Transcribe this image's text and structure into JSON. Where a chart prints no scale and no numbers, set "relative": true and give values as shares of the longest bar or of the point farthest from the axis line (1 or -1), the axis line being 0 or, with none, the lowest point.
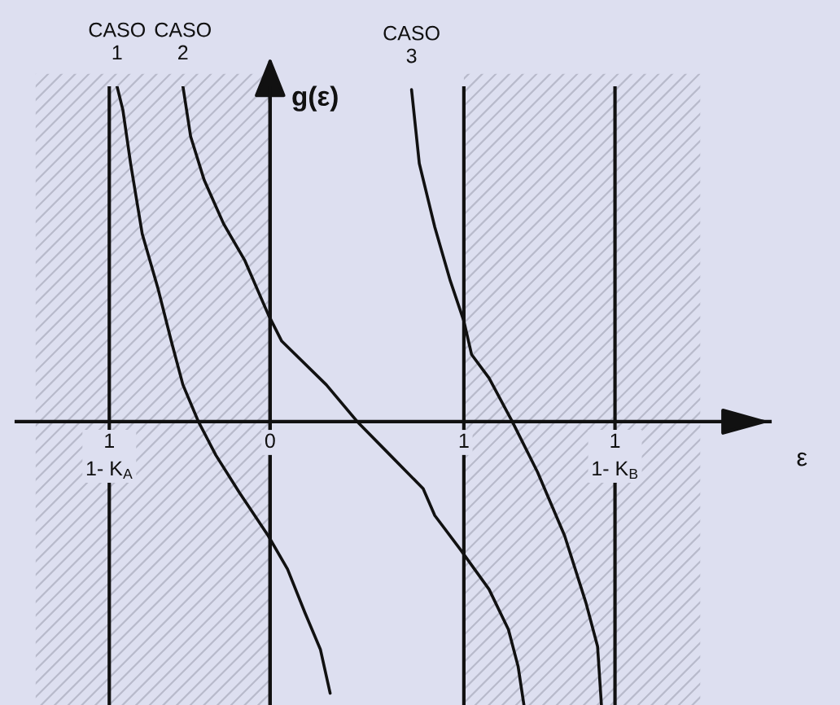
{
  "chart_data": {
    "type": "line",
    "relative": true,
    "xlabel": "ε",
    "ylabel": "g(ε)",
    "xlim": [
      -1.31,
      2.58
    ],
    "xticks": [
      {
        "value": -0.83,
        "label": "1\n1- K$_{A}$"
      },
      0,
      1,
      {
        "value": 1.78,
        "label": "1\n1- K$_{B}$"
      }
    ],
    "tick_labels": "x",
    "grid": "x",
    "series": [
      {
        "name": "CASO 1",
        "color": "#111111",
        "x": [
          -0.79,
          -0.76,
          -0.72,
          -0.66,
          -0.58,
          -0.51,
          -0.45,
          -0.37,
          -0.28,
          -0.16,
          -0.01,
          0.09,
          0.18,
          0.26,
          0.31
        ],
        "values": [
          1.0,
          0.93,
          0.77,
          0.56,
          0.4,
          0.24,
          0.11,
          0.0,
          -0.1,
          -0.21,
          -0.34,
          -0.44,
          -0.57,
          -0.68,
          -0.81
        ]
      },
      {
        "name": "CASO 2",
        "color": "#111111",
        "x": [
          -0.45,
          -0.41,
          -0.34,
          -0.24,
          -0.13,
          -0.01,
          0.06,
          0.29,
          0.45,
          0.62,
          0.79,
          0.85,
          0.98,
          1.13,
          1.23,
          1.28,
          1.31
        ],
        "values": [
          1.0,
          0.85,
          0.72,
          0.59,
          0.48,
          0.32,
          0.24,
          0.11,
          0.0,
          -0.1,
          -0.2,
          -0.28,
          -0.38,
          -0.5,
          -0.62,
          -0.73,
          -0.845
        ]
      },
      {
        "name": "CASO 3",
        "color": "#111111",
        "x": [
          0.73,
          0.77,
          0.85,
          0.93,
          1.0,
          1.04,
          1.13,
          1.25,
          1.38,
          1.52,
          1.63,
          1.69,
          1.71
        ],
        "values": [
          0.99,
          0.77,
          0.58,
          0.42,
          0.3,
          0.2,
          0.13,
          0.0,
          -0.15,
          -0.34,
          -0.54,
          -0.67,
          -0.845
        ]
      }
    ],
    "bands": [
      {
        "axis": "x",
        "from": -1.21,
        "to": 0,
        "color": "#b8bacb"
      },
      {
        "axis": "x",
        "from": 1,
        "to": 2.22,
        "color": "#b8bacb"
      }
    ]
  }
}
